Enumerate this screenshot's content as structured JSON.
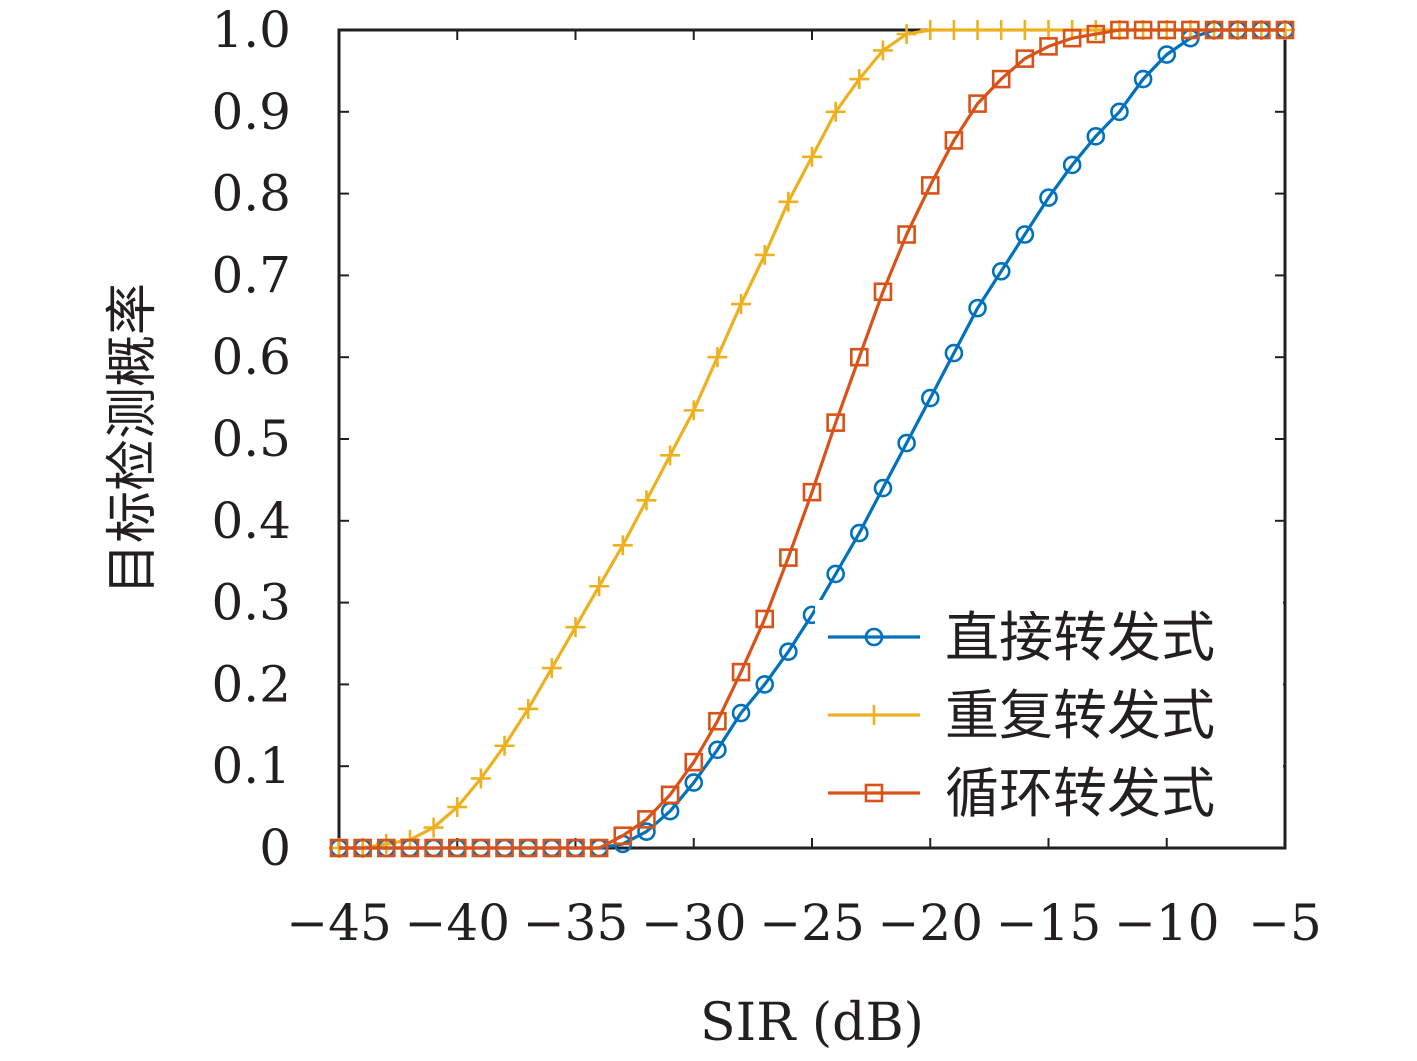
{
  "chart_data": {
    "type": "line",
    "xlabel": "SIR (dB)",
    "ylabel": "目标检测概率",
    "xlim": [
      -45,
      -5
    ],
    "ylim": [
      0,
      1.0
    ],
    "x_ticks": [
      "−45",
      "−40",
      "−35",
      "−30",
      "−25",
      "−20",
      "−15",
      "−10",
      "−5"
    ],
    "y_ticks": [
      "0",
      "0.1",
      "0.2",
      "0.3",
      "0.4",
      "0.5",
      "0.6",
      "0.7",
      "0.8",
      "0.9",
      "1.0"
    ],
    "grid": false,
    "legend_position": "lower-right",
    "x": [
      -45,
      -44,
      -43,
      -42,
      -41,
      -40,
      -39,
      -38,
      -37,
      -36,
      -35,
      -34,
      -33,
      -32,
      -31,
      -30,
      -29,
      -28,
      -27,
      -26,
      -25,
      -24,
      -23,
      -22,
      -21,
      -20,
      -19,
      -18,
      -17,
      -16,
      -15,
      -14,
      -13,
      -12,
      -11,
      -10,
      -9,
      -8,
      -7,
      -6,
      -5
    ],
    "series": [
      {
        "name": "直接转发式",
        "color": "#0072bd",
        "marker": "circle",
        "values": [
          0,
          0,
          0,
          0,
          0,
          0,
          0,
          0,
          0,
          0,
          0,
          0,
          0.005,
          0.02,
          0.045,
          0.08,
          0.12,
          0.165,
          0.2,
          0.24,
          0.285,
          0.335,
          0.385,
          0.44,
          0.495,
          0.55,
          0.605,
          0.66,
          0.705,
          0.75,
          0.795,
          0.835,
          0.87,
          0.9,
          0.94,
          0.97,
          0.99,
          1.0,
          1.0,
          1.0,
          1.0
        ]
      },
      {
        "name": "重复转发式",
        "color": "#edb120",
        "marker": "plus",
        "values": [
          0,
          0,
          0.005,
          0.01,
          0.025,
          0.05,
          0.085,
          0.125,
          0.17,
          0.22,
          0.27,
          0.32,
          0.37,
          0.425,
          0.48,
          0.535,
          0.6,
          0.665,
          0.725,
          0.79,
          0.845,
          0.9,
          0.94,
          0.975,
          0.995,
          1.0,
          1.0,
          1.0,
          1.0,
          1.0,
          1.0,
          1.0,
          1.0,
          1.0,
          1.0,
          1.0,
          1.0,
          1.0,
          1.0,
          1.0,
          1.0
        ]
      },
      {
        "name": "循环转发式",
        "color": "#d95319",
        "marker": "square",
        "values": [
          0,
          0,
          0,
          0,
          0,
          0,
          0,
          0,
          0,
          0,
          0,
          0,
          0.015,
          0.035,
          0.065,
          0.105,
          0.155,
          0.215,
          0.28,
          0.355,
          0.435,
          0.52,
          0.6,
          0.68,
          0.75,
          0.81,
          0.865,
          0.91,
          0.94,
          0.965,
          0.98,
          0.99,
          0.995,
          1.0,
          1.0,
          1.0,
          1.0,
          1.0,
          1.0,
          1.0,
          1.0
        ]
      }
    ]
  }
}
